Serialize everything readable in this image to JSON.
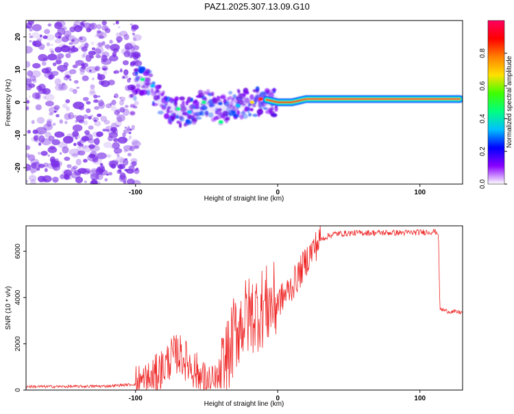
{
  "title": "PAZ1.2025.307.13.09.G10",
  "colors": {
    "snr_line": "#ee2222",
    "noise": "#7a2ee6",
    "colormap": [
      "#ffffff",
      "#8a00ff",
      "#0000ff",
      "#00c0ff",
      "#00ff80",
      "#40ff00",
      "#ffe000",
      "#ff8000",
      "#ff0000",
      "#ff0060"
    ]
  },
  "chart_data": [
    {
      "type": "heatmap",
      "title": "PAZ1.2025.307.13.09.G10",
      "xlabel": "Height of straight line (km)",
      "ylabel": "Frequency (Hz)",
      "xlim": [
        -177,
        130
      ],
      "ylim": [
        -25,
        25
      ],
      "xticks": [
        -100,
        0,
        100
      ],
      "xtick_labels": [
        "-100",
        "0",
        "100"
      ],
      "yticks": [
        -20,
        -10,
        0,
        10,
        20
      ],
      "ytick_labels": [
        "-20",
        "-10",
        "0",
        "10",
        "20"
      ],
      "colorbar": {
        "label": "Normalized spectral amplitude",
        "range": [
          0,
          1
        ],
        "ticks": [
          0.0,
          0.2,
          0.4,
          0.6,
          0.8
        ],
        "tick_labels": [
          "0.0",
          "0.2",
          "0.4",
          "0.6",
          "0.8"
        ]
      },
      "ridge": {
        "description_points_km_hz": [
          [
            -100,
            7
          ],
          [
            -90,
            5
          ],
          [
            -80,
            -1
          ],
          [
            -70,
            -3
          ],
          [
            -60,
            -3
          ],
          [
            -50,
            0
          ],
          [
            -40,
            -3
          ],
          [
            -30,
            0
          ],
          [
            -20,
            0
          ],
          [
            -10,
            1
          ],
          [
            0,
            0
          ],
          [
            10,
            0
          ],
          [
            20,
            1
          ],
          [
            40,
            1
          ],
          [
            60,
            1
          ],
          [
            80,
            1
          ],
          [
            100,
            1
          ],
          [
            128,
            1
          ]
        ]
      }
    },
    {
      "type": "line",
      "xlabel": "Height of straight line (km)",
      "ylabel": "SNR (10 * v/v)",
      "xlim": [
        -177,
        130
      ],
      "ylim": [
        0,
        7100
      ],
      "xticks": [
        -100,
        0,
        100
      ],
      "xtick_labels": [
        "-100",
        "0",
        "100"
      ],
      "yticks": [
        0,
        2000,
        4000,
        6000
      ],
      "ytick_labels": [
        "0",
        "2000",
        "4000",
        "6000"
      ],
      "series": [
        {
          "name": "SNR",
          "x": [
            -177,
            -150,
            -120,
            -100,
            -90,
            -85,
            -80,
            -75,
            -70,
            -65,
            -60,
            -55,
            -50,
            -45,
            -40,
            -35,
            -30,
            -25,
            -20,
            -15,
            -10,
            -5,
            0,
            5,
            10,
            15,
            20,
            25,
            30,
            35,
            40,
            50,
            60,
            70,
            80,
            90,
            100,
            110,
            113,
            114,
            120,
            130
          ],
          "y": [
            150,
            150,
            170,
            250,
            400,
            700,
            1000,
            1400,
            1600,
            1300,
            1000,
            600,
            250,
            200,
            600,
            1500,
            2500,
            3000,
            3200,
            3400,
            3600,
            3700,
            3800,
            4100,
            4500,
            5000,
            5600,
            6100,
            6500,
            6650,
            6750,
            6780,
            6800,
            6800,
            6800,
            6800,
            6820,
            6850,
            6800,
            3500,
            3400,
            3350
          ]
        }
      ]
    }
  ]
}
